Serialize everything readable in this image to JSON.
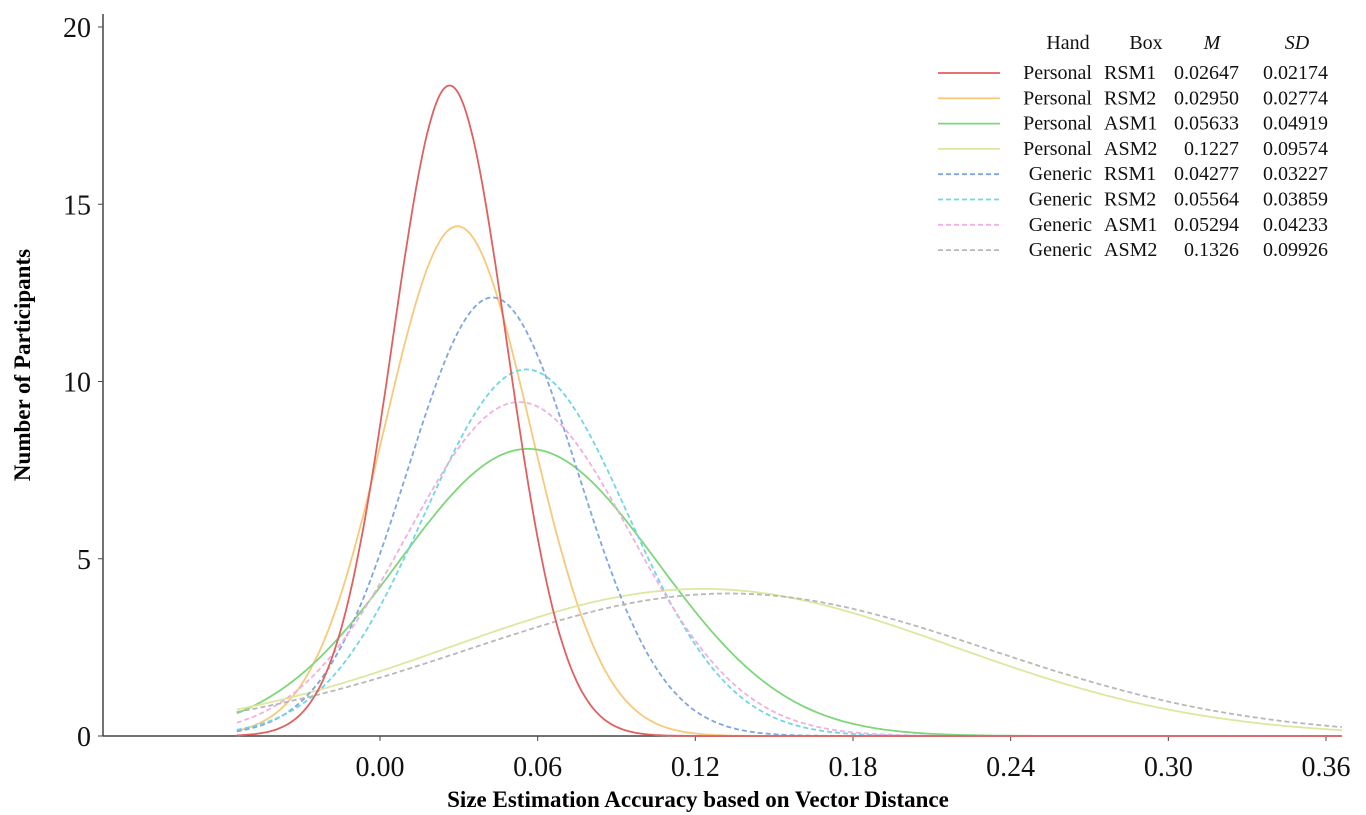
{
  "chart_data": {
    "type": "line",
    "title": "",
    "xlabel": "Size Estimation Accuracy based on Vector Distance",
    "ylabel": "Number of Participants",
    "xlim": [
      -0.0545,
      0.366
    ],
    "ylim": [
      0,
      20
    ],
    "x_ticks": [
      "0.00",
      "0.06",
      "0.12",
      "0.18",
      "0.24",
      "0.30",
      "0.36"
    ],
    "x_tick_values": [
      0,
      0.06,
      0.12,
      0.18,
      0.24,
      0.3,
      0.36
    ],
    "y_ticks": [
      "0",
      "5",
      "10",
      "15",
      "20"
    ],
    "y_tick_values": [
      0,
      5,
      10,
      15,
      20
    ],
    "grid": false,
    "legend_position": "top-right",
    "legend_headers": [
      "Hand",
      "Box",
      "M",
      "SD"
    ],
    "series": [
      {
        "hand": "Personal",
        "box": "RSM1",
        "m": "0.02647",
        "sd": "0.02174",
        "mean": 0.02647,
        "sdv": 0.02174,
        "peak": 18.35,
        "color": "#e06060",
        "dashed": false
      },
      {
        "hand": "Personal",
        "box": "RSM2",
        "m": "0.02950",
        "sd": "0.02774",
        "mean": 0.0295,
        "sdv": 0.02774,
        "peak": 14.38,
        "color": "#f7c97a",
        "dashed": false
      },
      {
        "hand": "Personal",
        "box": "ASM1",
        "m": "0.05633",
        "sd": "0.04919",
        "mean": 0.05633,
        "sdv": 0.04919,
        "peak": 8.1,
        "color": "#7fd67a",
        "dashed": false
      },
      {
        "hand": "Personal",
        "box": "ASM2",
        "m": "0.1227",
        "sd": "0.09574",
        "mean": 0.1227,
        "sdv": 0.09574,
        "peak": 4.15,
        "color": "#dde7a0",
        "dashed": false
      },
      {
        "hand": "Generic",
        "box": "RSM1",
        "m": "0.04277",
        "sd": "0.03227",
        "mean": 0.04277,
        "sdv": 0.03227,
        "peak": 12.37,
        "color": "#7ea6e0",
        "dashed": true
      },
      {
        "hand": "Generic",
        "box": "RSM2",
        "m": "0.05564",
        "sd": "0.03859",
        "mean": 0.05564,
        "sdv": 0.03859,
        "peak": 10.34,
        "color": "#6fd6e6",
        "dashed": true
      },
      {
        "hand": "Generic",
        "box": "ASM1",
        "m": "0.05294",
        "sd": "0.04233",
        "mean": 0.05294,
        "sdv": 0.04233,
        "peak": 9.42,
        "color": "#f0b0e0",
        "dashed": true
      },
      {
        "hand": "Generic",
        "box": "ASM2",
        "m": "0.1326",
        "sd": "0.09926",
        "mean": 0.1326,
        "sdv": 0.09926,
        "peak": 4.02,
        "color": "#b8b8b8",
        "dashed": true
      }
    ]
  }
}
